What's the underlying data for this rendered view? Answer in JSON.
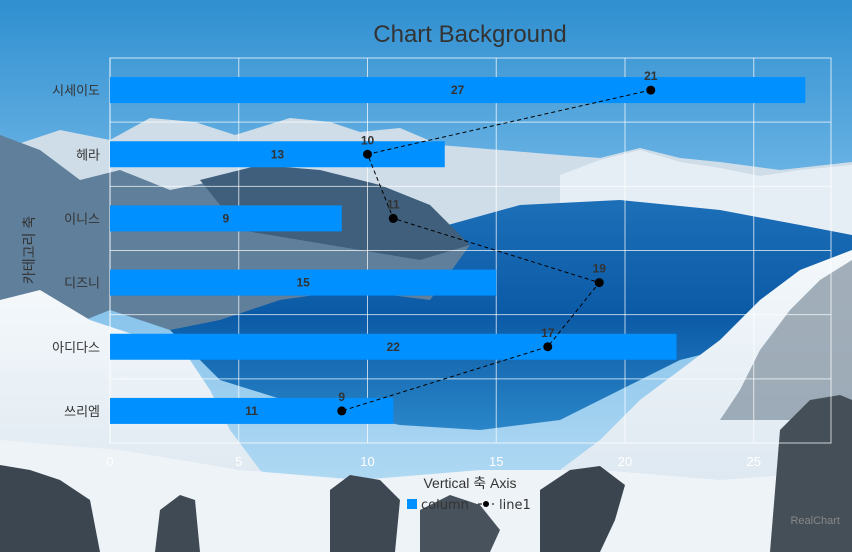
{
  "chart_data": {
    "type": "bar",
    "orientation": "horizontal",
    "title": "Chart Background",
    "categories": [
      "시세이도",
      "헤라",
      "이니스",
      "디즈니",
      "아디다스",
      "쓰리엠"
    ],
    "series": [
      {
        "name": "column",
        "type": "bar",
        "values": [
          27,
          13,
          9,
          15,
          22,
          11
        ],
        "color": "#0090ff"
      },
      {
        "name": "line1",
        "type": "line",
        "values": [
          21,
          10,
          11,
          19,
          17,
          9
        ],
        "color": "#000000",
        "line_style": "dashed"
      }
    ],
    "xlabel": "Vertical 축 Axis",
    "ylabel": "카테고리 축",
    "xlim": [
      0,
      28
    ],
    "xticks": [
      0,
      5,
      10,
      15,
      20,
      25
    ],
    "grid": true,
    "legend_position": "bottom"
  },
  "credit": "RealChart",
  "colors": {
    "bar": "#0090ff",
    "line": "#000000",
    "grid": "#ffffff"
  }
}
